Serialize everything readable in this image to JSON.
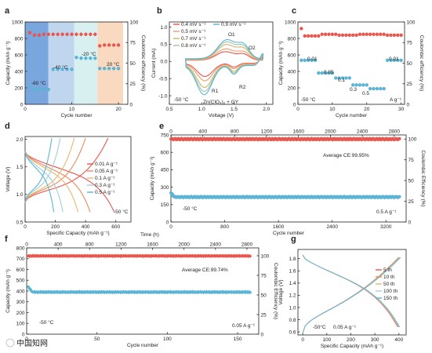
{
  "figure_labels": {
    "a": "a",
    "b": "b",
    "c": "c",
    "d": "d",
    "e": "e",
    "f": "f",
    "g": "g"
  },
  "watermark": "中国知网",
  "chart_data": [
    {
      "panel": "a",
      "type": "scatter",
      "xlabel": "Cycle number",
      "ylabel": "Capacity (mAh g⁻¹)",
      "y2label": "Coulombic efficiency (%)",
      "xlim": [
        0,
        22
      ],
      "ylim": [
        0,
        1000
      ],
      "y2lim": [
        0,
        100
      ],
      "xticks": [
        "0",
        "10",
        "20"
      ],
      "yticks": [
        "0",
        "200",
        "400",
        "600",
        "800",
        "1000"
      ],
      "y2ticks": [
        "0",
        "25",
        "50",
        "75",
        "100"
      ],
      "bands": [
        {
          "label": "-60 °C",
          "x": [
            0,
            5
          ],
          "color": "#7aa6de"
        },
        {
          "label": "-40 °C",
          "x": [
            5,
            10.5
          ],
          "color": "#bfd6ee"
        },
        {
          "label": "-20 °C",
          "x": [
            10.5,
            15.5
          ],
          "color": "#d9f0f0"
        },
        {
          "label": "20 °C",
          "x": [
            15.5,
            21
          ],
          "color": "#f9d9bf"
        }
      ],
      "series": [
        {
          "color": "#e8564e",
          "axis": "y2",
          "x": [
            1,
            2,
            3,
            4,
            5,
            6,
            7,
            8,
            9,
            10,
            11,
            12,
            13,
            14,
            15,
            16,
            17,
            18,
            19,
            20
          ],
          "values": [
            87,
            84,
            84,
            85,
            85,
            85,
            85,
            85,
            85,
            85,
            85,
            85,
            85,
            85,
            85,
            71,
            72,
            72,
            72,
            72
          ]
        },
        {
          "color": "#5ab4d6",
          "axis": "y",
          "x": [
            1,
            2,
            3,
            4,
            5,
            6,
            7,
            8,
            9,
            10,
            11,
            12,
            13,
            14,
            15,
            16,
            17,
            18,
            19,
            20
          ],
          "values": [
            205,
            180,
            180,
            180,
            180,
            425,
            425,
            425,
            425,
            425,
            570,
            560,
            560,
            560,
            560,
            435,
            435,
            435,
            435,
            435
          ]
        }
      ]
    },
    {
      "panel": "b",
      "type": "line",
      "xlabel": "Voltage (V)",
      "ylabel": "Current (mA)",
      "xlim": [
        0.5,
        2.1
      ],
      "ylim": [
        -1.25,
        1.15
      ],
      "xticks": [
        "0.5",
        "1.0",
        "1.5",
        "2.0"
      ],
      "yticks": [
        "-1.0",
        "-0.5",
        "0.0",
        "0.5",
        "1.0"
      ],
      "annotations": [
        "O1",
        "O2",
        "R1",
        "R2",
        "-50 °C",
        "Zn(ClO₄)₂ + GY"
      ],
      "series": [
        {
          "name": "0.4 mV s⁻¹",
          "color": "#e8564e",
          "scale": 0.45
        },
        {
          "name": "0.5 mV s⁻¹",
          "color": "#f19a6b",
          "scale": 0.58
        },
        {
          "name": "0.7 mV s⁻¹",
          "color": "#c9b36a",
          "scale": 0.78
        },
        {
          "name": "0.8 mV s⁻¹",
          "color": "#9fc4a9",
          "scale": 0.9
        },
        {
          "name": "0.9 mV s⁻¹",
          "color": "#5ab4d6",
          "scale": 1.0
        }
      ]
    },
    {
      "panel": "c",
      "type": "scatter",
      "xlabel": "Cycle number",
      "ylabel": "Capacity (mAh g⁻¹)",
      "y2label": "Coulombic efficiency (%)",
      "xlim": [
        0,
        31
      ],
      "ylim": [
        0,
        1000
      ],
      "y2lim": [
        0,
        100
      ],
      "xticks": [
        "0",
        "10",
        "20",
        "30"
      ],
      "yticks": [
        "0",
        "200",
        "400",
        "600",
        "800",
        "1000"
      ],
      "y2ticks": [
        "0",
        "25",
        "50",
        "75",
        "100"
      ],
      "annotations": [
        "0.01",
        "0.05",
        "0.1",
        "0.3",
        "0.5",
        "0.01",
        "-50 °C",
        "A g⁻¹"
      ],
      "series": [
        {
          "color": "#e8564e",
          "axis": "y2",
          "x": [
            1,
            2,
            3,
            4,
            5,
            6,
            7,
            8,
            9,
            10,
            11,
            12,
            13,
            14,
            15,
            16,
            17,
            18,
            19,
            20,
            21,
            22,
            23,
            24,
            25,
            26,
            27,
            28,
            29,
            30
          ],
          "values": [
            92,
            83,
            83,
            83,
            83,
            83,
            85,
            85,
            85,
            85,
            85,
            84,
            84,
            84,
            84,
            84,
            84,
            85,
            85,
            85,
            85,
            85,
            85,
            85,
            85,
            84,
            84,
            84,
            84,
            84
          ]
        },
        {
          "color": "#5ab4d6",
          "axis": "y",
          "x": [
            1,
            2,
            3,
            4,
            5,
            6,
            7,
            8,
            9,
            10,
            11,
            12,
            13,
            14,
            15,
            16,
            17,
            18,
            19,
            20,
            21,
            22,
            23,
            24,
            25,
            26,
            27,
            28,
            29,
            30
          ],
          "values": [
            535,
            535,
            535,
            535,
            535,
            380,
            380,
            380,
            380,
            380,
            320,
            320,
            320,
            320,
            320,
            235,
            235,
            235,
            235,
            235,
            190,
            190,
            190,
            190,
            190,
            535,
            535,
            535,
            535,
            535
          ]
        }
      ]
    },
    {
      "panel": "d",
      "type": "line",
      "xlabel": "Specific Capacity (mAh g⁻¹)",
      "ylabel": "Voltage (V)",
      "xlim": [
        0,
        700
      ],
      "ylim": [
        0.5,
        2.05
      ],
      "xticks": [
        "0",
        "200",
        "400",
        "600"
      ],
      "yticks": [
        "0.5",
        "1.0",
        "1.5",
        "2.0"
      ],
      "annotations": [
        "-50 °C"
      ],
      "series": [
        {
          "name": "0.01 A g⁻¹",
          "color": "#e8564e",
          "capacity": 590
        },
        {
          "name": "0.05 A g⁻¹",
          "color": "#ed8a58",
          "capacity": 430
        },
        {
          "name": "0.1 A g⁻¹",
          "color": "#e6b870",
          "capacity": 350
        },
        {
          "name": "0.3 A g⁻¹",
          "color": "#9fd0d8",
          "capacity": 250
        },
        {
          "name": "0.5 A g⁻¹",
          "color": "#5ab4d6",
          "capacity": 190
        }
      ]
    },
    {
      "panel": "e",
      "type": "scatter",
      "xlabel": "Cycle number",
      "ylabel": "Capacity (mAh g⁻¹)",
      "y2label": "Coulombic Efficiency (%)",
      "x2label": "Time (h)",
      "xlim": [
        0,
        3500
      ],
      "ylim": [
        0,
        750
      ],
      "y2lim": [
        0,
        105
      ],
      "x2lim": [
        0,
        2950
      ],
      "xticks": [
        "0",
        "800",
        "1600",
        "2400",
        "3200"
      ],
      "yticks": [
        "0",
        "150",
        "300",
        "450",
        "600",
        "750"
      ],
      "y2ticks": [
        "0",
        "25",
        "50",
        "75",
        "100"
      ],
      "x2ticks": [
        "0",
        "400",
        "800",
        "1200",
        "1600",
        "2000",
        "2400",
        "2800"
      ],
      "annotations": [
        "Average CE:99.95%",
        "-50 °C",
        "0.5 A g⁻¹"
      ],
      "series": [
        {
          "name": "Coulombic efficiency",
          "color": "#e8564e",
          "axis": "y2",
          "level": 99.95
        },
        {
          "name": "Capacity",
          "color": "#5ab4d6",
          "axis": "y",
          "start": 250,
          "level": 215
        }
      ]
    },
    {
      "panel": "f",
      "type": "scatter",
      "xlabel": "Cycle number",
      "ylabel": "Capacity (mAh g⁻¹)",
      "y2label": "Coulombic Efficiency (%)",
      "x2label": "Time (h)",
      "xlim": [
        0,
        165
      ],
      "ylim": [
        0,
        800
      ],
      "y2lim": [
        0,
        110
      ],
      "x2lim": [
        0,
        2950
      ],
      "xticks": [
        "0",
        "50",
        "100",
        "150"
      ],
      "yticks": [
        "0",
        "100",
        "200",
        "300",
        "400",
        "500",
        "600",
        "700",
        "800"
      ],
      "y2ticks": [
        "0",
        "25",
        "50",
        "75",
        "100"
      ],
      "x2ticks": [
        "0",
        "400",
        "800",
        "1200",
        "1600",
        "2000",
        "2400",
        "2800"
      ],
      "annotations": [
        "Average CE:99.74%",
        "-50 °C",
        "0.05 A g⁻¹"
      ],
      "series": [
        {
          "name": "Coulombic efficiency",
          "color": "#e8564e",
          "axis": "y2",
          "level": 99.74
        },
        {
          "name": "Capacity",
          "color": "#5ab4d6",
          "axis": "y",
          "start": 440,
          "level": 390
        }
      ]
    },
    {
      "panel": "g",
      "type": "line",
      "xlabel": "Specific Capacity (mAh g⁻¹)",
      "ylabel": "Voltage (V)",
      "xlim": [
        -20,
        430
      ],
      "ylim": [
        0.55,
        1.95
      ],
      "xticks": [
        "0",
        "100",
        "200",
        "300",
        "400"
      ],
      "yticks": [
        "0.6",
        "0.8",
        "1.0",
        "1.2",
        "1.4",
        "1.6",
        "1.8"
      ],
      "annotations": [
        "-50°C",
        "0.05 A g⁻¹"
      ],
      "series": [
        {
          "name": "5 th",
          "color": "#e8564e"
        },
        {
          "name": "10 th",
          "color": "#ed8a58"
        },
        {
          "name": "50 th",
          "color": "#e6b870"
        },
        {
          "name": "100 th",
          "color": "#9fd0d8"
        },
        {
          "name": "150 th",
          "color": "#5ab4d6"
        }
      ]
    }
  ]
}
